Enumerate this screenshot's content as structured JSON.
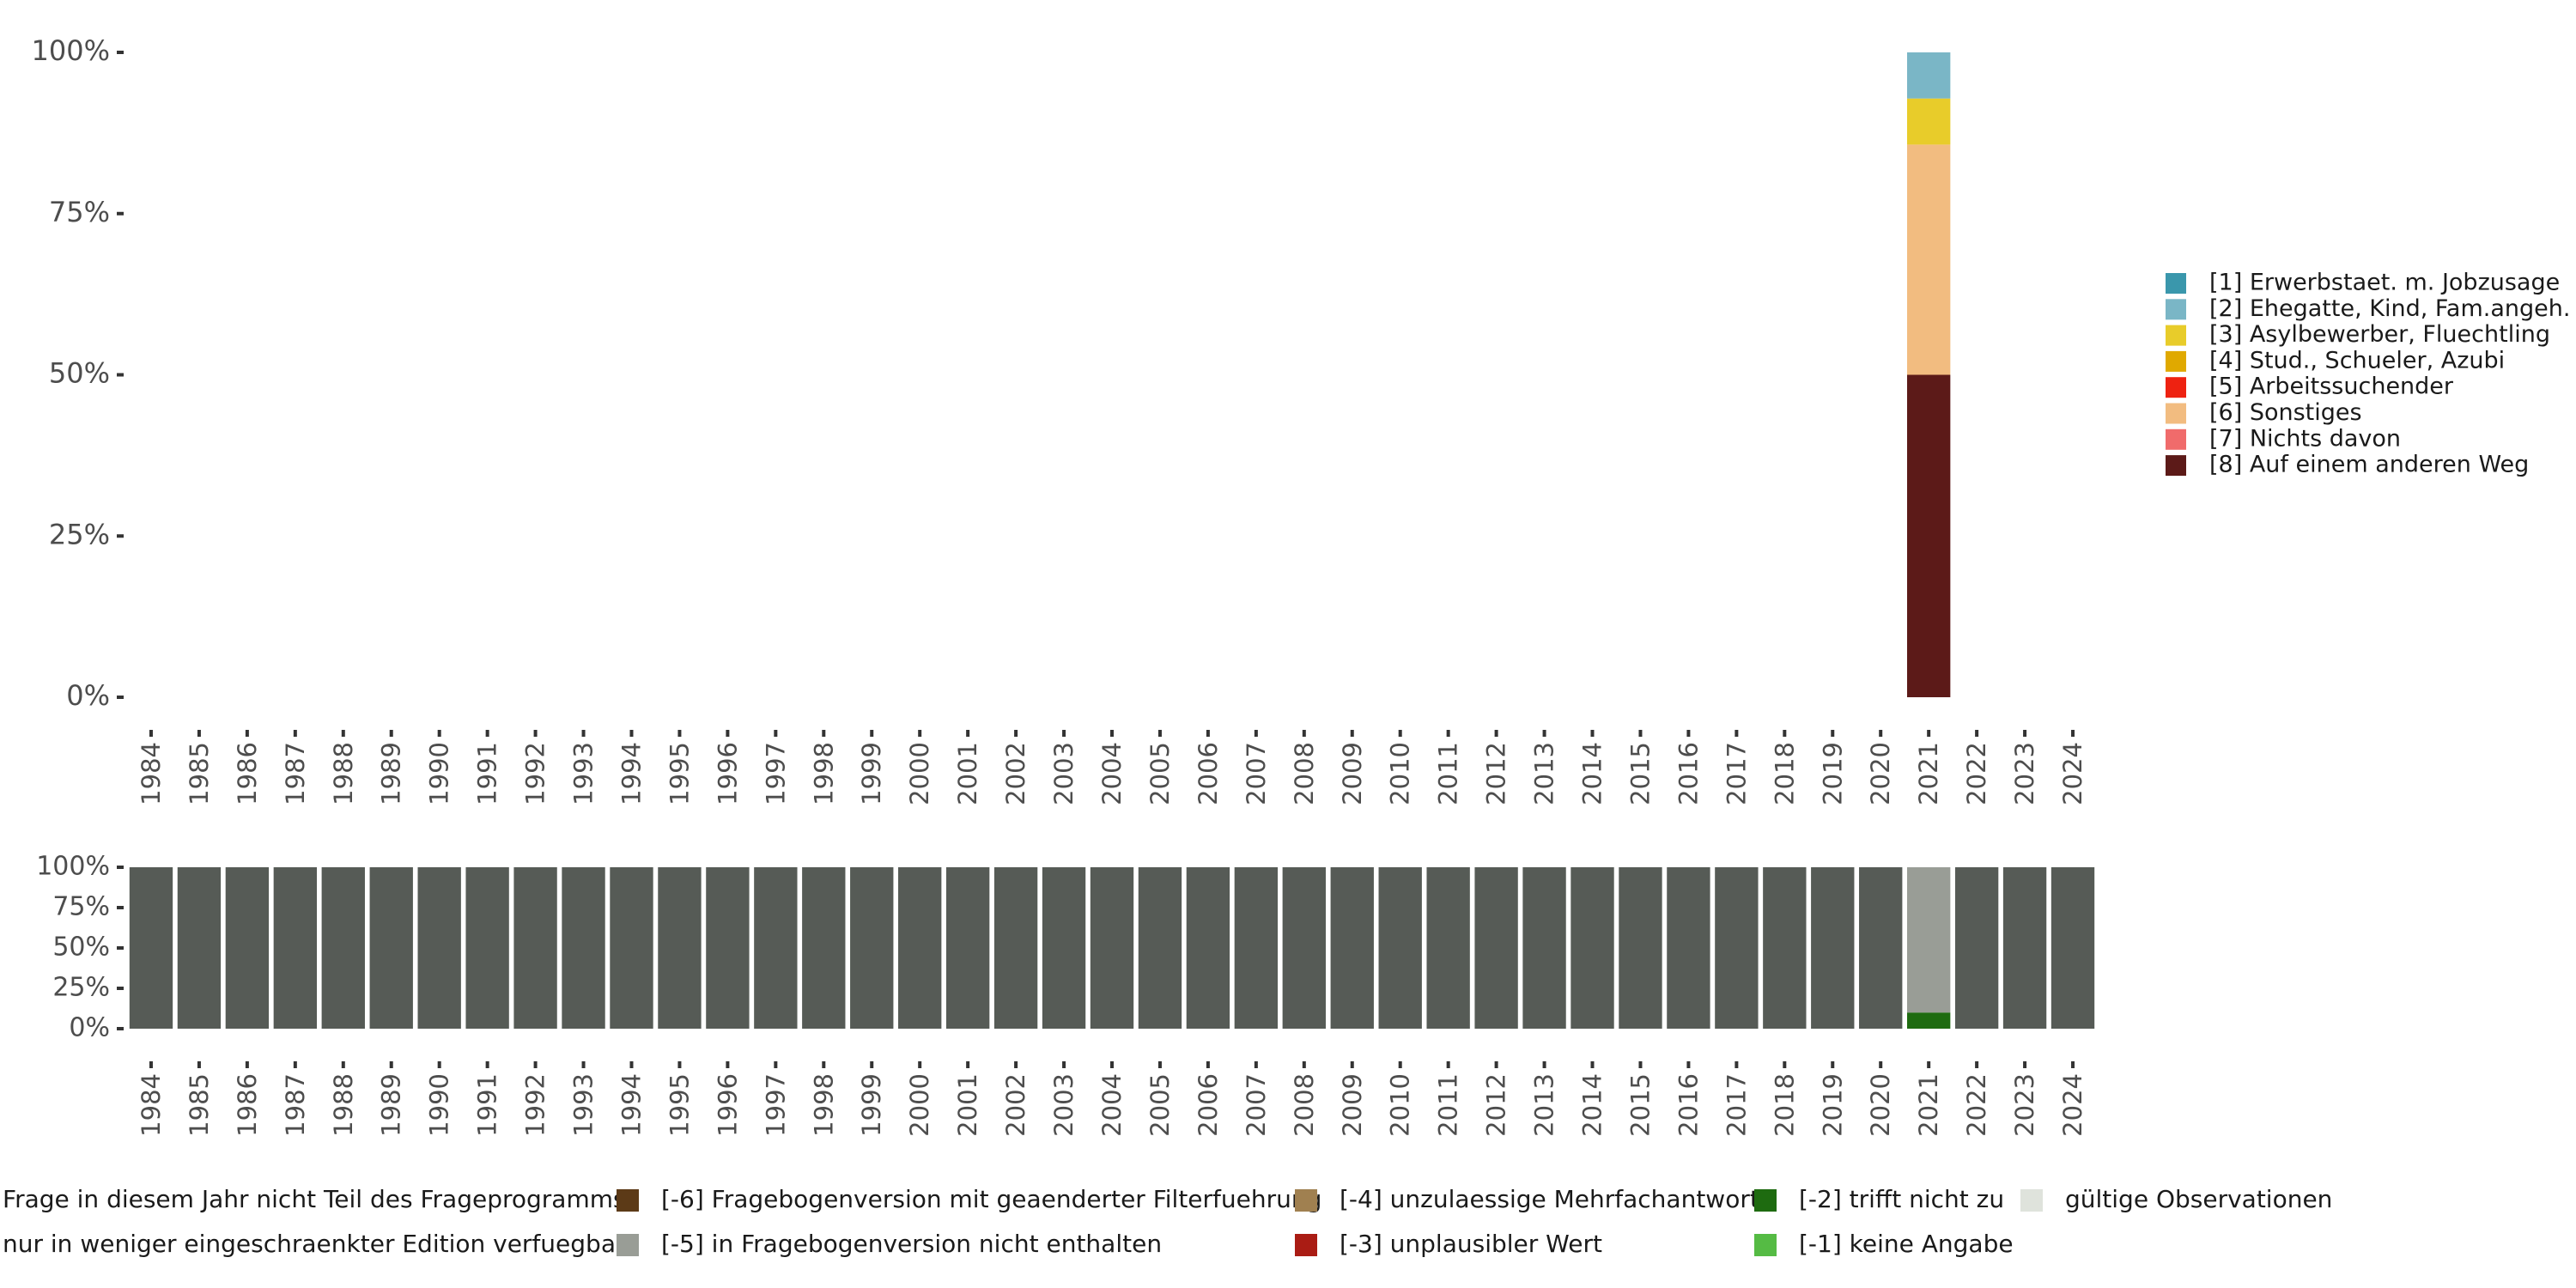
{
  "chart_data": [
    {
      "type": "bar",
      "stacked": true,
      "title": "",
      "xlabel": "",
      "ylabel": "",
      "ylim": [
        0,
        100
      ],
      "y_ticks": [
        "0%",
        "25%",
        "50%",
        "75%",
        "100%"
      ],
      "categories": [
        "1984",
        "1985",
        "1986",
        "1987",
        "1988",
        "1989",
        "1990",
        "1991",
        "1992",
        "1993",
        "1994",
        "1995",
        "1996",
        "1997",
        "1998",
        "1999",
        "2000",
        "2001",
        "2002",
        "2003",
        "2004",
        "2005",
        "2006",
        "2007",
        "2008",
        "2009",
        "2010",
        "2011",
        "2012",
        "2013",
        "2014",
        "2015",
        "2016",
        "2017",
        "2018",
        "2019",
        "2020",
        "2021",
        "2022",
        "2023",
        "2024"
      ],
      "legend_position": "right",
      "series": [
        {
          "name": "[8] Auf einem anderen Weg",
          "color": "#5c1a18",
          "points": [
            {
              "x": "2021",
              "y": 50
            }
          ]
        },
        {
          "name": "[7] Nichts davon",
          "color": "#f06b6b",
          "points": []
        },
        {
          "name": "[6] Sonstiges",
          "color": "#f2bc80",
          "points": [
            {
              "x": "2021",
              "y": 35.7
            }
          ]
        },
        {
          "name": "[5] Arbeitssuchender",
          "color": "#ee2211",
          "points": []
        },
        {
          "name": "[4] Stud., Schueler, Azubi",
          "color": "#e0a900",
          "points": []
        },
        {
          "name": "[3] Asylbewerber, Fluechtling",
          "color": "#e8cc2a",
          "points": [
            {
              "x": "2021",
              "y": 7.15
            }
          ]
        },
        {
          "name": "[2] Ehegatte, Kind, Fam.angeh.",
          "color": "#7ab6c6",
          "points": [
            {
              "x": "2021",
              "y": 7.15
            }
          ]
        },
        {
          "name": "[1] Erwerbstaet. m. Jobzusage",
          "color": "#3a97ac",
          "points": []
        }
      ],
      "legend_order": [
        "[1] Erwerbstaet. m. Jobzusage",
        "[2] Ehegatte, Kind, Fam.angeh.",
        "[3] Asylbewerber, Fluechtling",
        "[4] Stud., Schueler, Azubi",
        "[5] Arbeitssuchender",
        "[6] Sonstiges",
        "[7] Nichts davon",
        "[8] Auf einem anderen Weg"
      ]
    },
    {
      "type": "bar",
      "stacked": true,
      "title": "",
      "xlabel": "",
      "ylabel": "",
      "ylim": [
        0,
        100
      ],
      "y_ticks": [
        "0%",
        "25%",
        "50%",
        "75%",
        "100%"
      ],
      "categories": [
        "1984",
        "1985",
        "1986",
        "1987",
        "1988",
        "1989",
        "1990",
        "1991",
        "1992",
        "1993",
        "1994",
        "1995",
        "1996",
        "1997",
        "1998",
        "1999",
        "2000",
        "2001",
        "2002",
        "2003",
        "2004",
        "2005",
        "2006",
        "2007",
        "2008",
        "2009",
        "2010",
        "2011",
        "2012",
        "2013",
        "2014",
        "2015",
        "2016",
        "2017",
        "2018",
        "2019",
        "2020",
        "2021",
        "2022",
        "2023",
        "2024"
      ],
      "legend_position": "bottom",
      "series": [
        {
          "name": "[-2] trifft nicht zu",
          "color": "#1e6b10",
          "points": [
            {
              "x": "2021",
              "y": 10
            }
          ]
        },
        {
          "name": "[-5] in Fragebogenversion nicht enthalten",
          "color": "#999d96",
          "points": [
            {
              "x": "2021",
              "y": 90
            }
          ]
        },
        {
          "name": "Frage in diesem Jahr nicht Teil des Frageprogramms",
          "color": "#565b56",
          "points": [
            {
              "x": "1984",
              "y": 100
            },
            {
              "x": "1985",
              "y": 100
            },
            {
              "x": "1986",
              "y": 100
            },
            {
              "x": "1987",
              "y": 100
            },
            {
              "x": "1988",
              "y": 100
            },
            {
              "x": "1989",
              "y": 100
            },
            {
              "x": "1990",
              "y": 100
            },
            {
              "x": "1991",
              "y": 100
            },
            {
              "x": "1992",
              "y": 100
            },
            {
              "x": "1993",
              "y": 100
            },
            {
              "x": "1994",
              "y": 100
            },
            {
              "x": "1995",
              "y": 100
            },
            {
              "x": "1996",
              "y": 100
            },
            {
              "x": "1997",
              "y": 100
            },
            {
              "x": "1998",
              "y": 100
            },
            {
              "x": "1999",
              "y": 100
            },
            {
              "x": "2000",
              "y": 100
            },
            {
              "x": "2001",
              "y": 100
            },
            {
              "x": "2002",
              "y": 100
            },
            {
              "x": "2003",
              "y": 100
            },
            {
              "x": "2004",
              "y": 100
            },
            {
              "x": "2005",
              "y": 100
            },
            {
              "x": "2006",
              "y": 100
            },
            {
              "x": "2007",
              "y": 100
            },
            {
              "x": "2008",
              "y": 100
            },
            {
              "x": "2009",
              "y": 100
            },
            {
              "x": "2010",
              "y": 100
            },
            {
              "x": "2011",
              "y": 100
            },
            {
              "x": "2012",
              "y": 100
            },
            {
              "x": "2013",
              "y": 100
            },
            {
              "x": "2014",
              "y": 100
            },
            {
              "x": "2015",
              "y": 100
            },
            {
              "x": "2016",
              "y": 100
            },
            {
              "x": "2017",
              "y": 100
            },
            {
              "x": "2018",
              "y": 100
            },
            {
              "x": "2019",
              "y": 100
            },
            {
              "x": "2020",
              "y": 100
            },
            {
              "x": "2022",
              "y": 100
            },
            {
              "x": "2023",
              "y": 100
            },
            {
              "x": "2024",
              "y": 100
            }
          ]
        }
      ],
      "legend_rows": [
        [
          {
            "name": "Frage in diesem Jahr nicht Teil des Frageprogramms",
            "color": "#565b56"
          },
          {
            "name": "[-6] Fragebogenversion mit geaenderter Filterfuehrung",
            "color": "#5c3a17"
          },
          {
            "name": "[-4] unzulaessige Mehrfachantwort",
            "color": "#a08050"
          },
          {
            "name": "[-2] trifft nicht zu",
            "color": "#1e6b10"
          },
          {
            "name": "gültige Observationen",
            "color": "#dfe3dc"
          }
        ],
        [
          {
            "name": "nur in weniger eingeschraenkter Edition verfuegbar",
            "color": "#ffffff"
          },
          {
            "name": "[-5] in Fragebogenversion nicht enthalten",
            "color": "#999d96"
          },
          {
            "name": "[-3] unplausibler Wert",
            "color": "#aa1c14"
          },
          {
            "name": "[-1] keine Angabe",
            "color": "#55bb44"
          }
        ]
      ]
    }
  ]
}
